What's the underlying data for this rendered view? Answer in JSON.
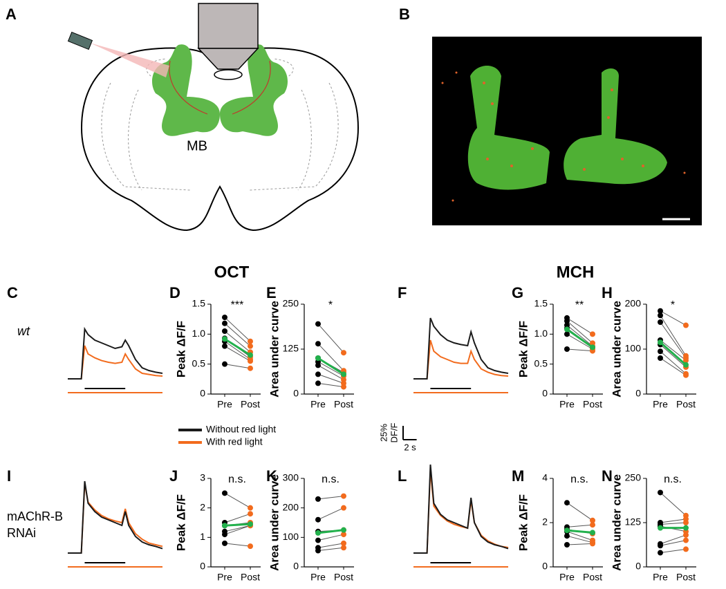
{
  "panel_labels": {
    "a": "A",
    "b": "B"
  },
  "headers": [
    "OCT",
    "MCH"
  ],
  "row_labels": {
    "wt": "wt",
    "rnai": [
      "mAChR-B",
      "RNAi"
    ]
  },
  "diagram": {
    "label": "MB"
  },
  "legend": [
    {
      "label": "Without red light",
      "color": "#1a1a1a"
    },
    {
      "label": "With red light",
      "color": "#f26b1d"
    }
  ],
  "scale_bar": {
    "y": 25,
    "y_label": "25%",
    "y_unit": "DF/F",
    "x": 2,
    "x_label": "2 s"
  },
  "chart_data": [
    {
      "type": "line",
      "panel": "C",
      "x": [
        0,
        1,
        2,
        2.5,
        3,
        4,
        5,
        6,
        7,
        8,
        8.5,
        9,
        10,
        11,
        12,
        13,
        14
      ],
      "stimulus": [
        2.5,
        8.5
      ],
      "series": [
        {
          "color": "#f26b1d",
          "values": [
            0,
            0,
            0,
            60,
            45,
            38,
            33,
            30,
            28,
            30,
            45,
            35,
            18,
            10,
            8,
            6,
            5
          ]
        },
        {
          "color": "#1a1a1a",
          "values": [
            0,
            0,
            0,
            90,
            80,
            70,
            65,
            60,
            55,
            58,
            70,
            60,
            35,
            20,
            15,
            12,
            10
          ]
        }
      ]
    },
    {
      "type": "paired",
      "panel": "D",
      "ylabel": "Peak ΔF/F",
      "categories": [
        "Pre",
        "Post"
      ],
      "significance": "***",
      "ylim": [
        0,
        1.5
      ],
      "yticks": [
        0,
        0.5,
        {
          "value": 1,
          "label": "1.0"
        },
        1.5
      ],
      "pre": [
        1.28,
        1.18,
        1.05,
        0.93,
        0.88,
        0.8,
        0.5
      ],
      "post": [
        0.88,
        0.8,
        0.7,
        0.62,
        0.58,
        0.55,
        0.43
      ],
      "mean": [
        0.92,
        0.65
      ]
    },
    {
      "type": "paired",
      "panel": "E",
      "ylabel": "Area under curve",
      "categories": [
        "Pre",
        "Post"
      ],
      "significance": "*",
      "ylim": [
        0,
        250
      ],
      "yticks": [
        0,
        125,
        250
      ],
      "pre": [
        195,
        140,
        100,
        90,
        80,
        55,
        30
      ],
      "post": [
        115,
        65,
        60,
        50,
        40,
        30,
        20
      ],
      "mean": [
        100,
        55
      ]
    },
    {
      "type": "line",
      "panel": "F",
      "x": [
        0,
        1,
        2,
        2.5,
        3,
        4,
        5,
        6,
        7,
        8,
        8.5,
        9,
        10,
        11,
        12,
        13,
        14
      ],
      "stimulus": [
        2.5,
        8.5
      ],
      "series": [
        {
          "color": "#f26b1d",
          "values": [
            0,
            0,
            0,
            70,
            50,
            40,
            35,
            30,
            28,
            28,
            50,
            35,
            18,
            12,
            8,
            6,
            5
          ]
        },
        {
          "color": "#1a1a1a",
          "values": [
            0,
            0,
            0,
            110,
            95,
            80,
            70,
            65,
            62,
            60,
            85,
            65,
            35,
            20,
            15,
            12,
            10
          ]
        }
      ]
    },
    {
      "type": "paired",
      "panel": "G",
      "ylabel": "Peak ΔF/F",
      "categories": [
        "Pre",
        "Post"
      ],
      "significance": "**",
      "ylim": [
        0,
        1.5
      ],
      "yticks": [
        0,
        0.5,
        {
          "value": 1,
          "label": "1.0"
        },
        1.5
      ],
      "pre": [
        1.27,
        1.22,
        1.15,
        1.1,
        1.0,
        0.75
      ],
      "post": [
        1.0,
        0.85,
        0.8,
        0.78,
        0.75,
        0.72
      ],
      "mean": [
        1.08,
        0.78
      ]
    },
    {
      "type": "paired",
      "panel": "H",
      "ylabel": "Area under curve",
      "categories": [
        "Pre",
        "Post"
      ],
      "significance": "*",
      "ylim": [
        0,
        200
      ],
      "yticks": [
        0,
        100,
        200
      ],
      "pre": [
        185,
        175,
        160,
        120,
        110,
        95,
        80
      ],
      "post": [
        153,
        85,
        80,
        75,
        60,
        45,
        42
      ],
      "mean": [
        115,
        65
      ]
    },
    {
      "type": "line",
      "panel": "I",
      "x": [
        0,
        1,
        2,
        2.5,
        3,
        4,
        5,
        6,
        7,
        8,
        8.5,
        9,
        10,
        11,
        12,
        13,
        14
      ],
      "stimulus": [
        2.5,
        8.5
      ],
      "series": [
        {
          "color": "#f26b1d",
          "values": [
            0,
            0,
            0,
            125,
            92,
            78,
            68,
            62,
            58,
            55,
            80,
            55,
            35,
            25,
            18,
            15,
            12
          ]
        },
        {
          "color": "#1a1a1a",
          "values": [
            0,
            0,
            0,
            130,
            90,
            75,
            65,
            60,
            55,
            50,
            75,
            50,
            30,
            20,
            15,
            12,
            8
          ]
        }
      ]
    },
    {
      "type": "paired",
      "panel": "J",
      "ylabel": "Peak ΔF/F",
      "categories": [
        "Pre",
        "Post"
      ],
      "significance": "n.s.",
      "ylim": [
        0,
        3
      ],
      "yticks": [
        0,
        1,
        2,
        3
      ],
      "pre": [
        2.5,
        1.5,
        1.4,
        1.2,
        1.1,
        0.8
      ],
      "post": [
        2.0,
        1.8,
        1.5,
        1.4,
        1.4,
        0.7
      ],
      "mean": [
        1.4,
        1.45
      ]
    },
    {
      "type": "paired",
      "panel": "K",
      "ylabel": "Area under curve",
      "categories": [
        "Pre",
        "Post"
      ],
      "significance": "n.s.",
      "ylim": [
        0,
        300
      ],
      "yticks": [
        0,
        100,
        200,
        300
      ],
      "pre": [
        230,
        160,
        120,
        90,
        65,
        55
      ],
      "post": [
        240,
        200,
        125,
        110,
        80,
        65
      ],
      "mean": [
        115,
        125
      ]
    },
    {
      "type": "line",
      "panel": "L",
      "x": [
        0,
        1,
        2,
        2.5,
        3,
        4,
        5,
        6,
        7,
        8,
        8.5,
        9,
        10,
        11,
        12,
        13,
        14
      ],
      "stimulus": [
        2.5,
        8.5
      ],
      "series": [
        {
          "color": "#f26b1d",
          "values": [
            0,
            0,
            0,
            150,
            85,
            68,
            58,
            52,
            48,
            45,
            95,
            55,
            32,
            22,
            16,
            12,
            10
          ]
        },
        {
          "color": "#1a1a1a",
          "values": [
            0,
            0,
            0,
            160,
            90,
            70,
            60,
            55,
            50,
            45,
            100,
            55,
            30,
            20,
            15,
            12,
            8
          ]
        }
      ]
    },
    {
      "type": "paired",
      "panel": "M",
      "ylabel": "Peak ΔF/F",
      "categories": [
        "Pre",
        "Post"
      ],
      "significance": "n.s.",
      "ylim": [
        0,
        4
      ],
      "yticks": [
        0,
        2,
        4
      ],
      "pre": [
        2.9,
        1.8,
        1.7,
        1.6,
        1.4,
        1.0
      ],
      "post": [
        2.1,
        1.9,
        1.5,
        1.2,
        1.1,
        1.05
      ],
      "mean": [
        1.65,
        1.55
      ]
    },
    {
      "type": "paired",
      "panel": "N",
      "ylabel": "Area under curve",
      "categories": [
        "Pre",
        "Post"
      ],
      "significance": "n.s.",
      "ylim": [
        0,
        250
      ],
      "yticks": [
        0,
        125,
        250
      ],
      "pre": [
        210,
        125,
        120,
        115,
        65,
        60,
        40
      ],
      "post": [
        145,
        135,
        125,
        100,
        90,
        75,
        50
      ],
      "mean": [
        110,
        110
      ]
    }
  ]
}
